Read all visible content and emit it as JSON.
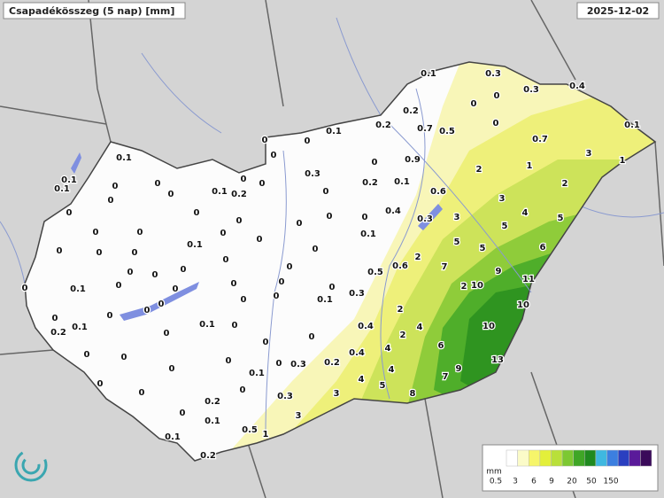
{
  "header": {
    "title": "Csapadékösszeg (5 nap) [mm]",
    "date": "2025-12-02"
  },
  "stations": [
    "0.1",
    "0.1",
    "0.1",
    "0",
    "0",
    "0",
    "0",
    "0",
    "0.1",
    "0.2",
    "0",
    "0",
    "0",
    "0",
    "0",
    "0",
    "0",
    "0.1",
    "0",
    "0",
    "0",
    "0",
    "0",
    "0.1",
    "0",
    "0",
    "0",
    "0",
    "0",
    "0",
    "0",
    "0",
    "0",
    "0.2",
    "0.1",
    "0",
    "0",
    "0.1",
    "0",
    "0",
    "0",
    "0",
    "0",
    "0",
    "0",
    "0.1",
    "0",
    "0",
    "0.2",
    "0",
    "0",
    "0.1",
    "0.1",
    "0.2",
    "0.5",
    "1",
    "0.3",
    "3",
    "3",
    "0",
    "0.3",
    "0.2",
    "0.4",
    "0",
    "4",
    "5",
    "4",
    "8",
    "7",
    "9",
    "6",
    "13",
    "10",
    "4",
    "2",
    "4",
    "2",
    "0.4",
    "0.3",
    "0.1",
    "0",
    "0",
    "0",
    "0",
    "0",
    "0.5",
    "0.6",
    "2",
    "7",
    "2",
    "10",
    "9",
    "10",
    "11",
    "6",
    "5",
    "5",
    "0.3",
    "3",
    "5",
    "4",
    "5",
    "3",
    "2",
    "3",
    "1",
    "1",
    "2",
    "0.7",
    "0.1",
    "0.4",
    "0.3",
    "0.3",
    "0.1",
    "0",
    "0",
    "0",
    "0.2",
    "0.7",
    "0.5",
    "0.2",
    "0.1",
    "0",
    "0",
    "0",
    "0.9",
    "0",
    "0.3",
    "0.1",
    "0.2",
    "0.6",
    "0",
    "0.4",
    "0",
    "0",
    "0",
    "0.1",
    "0"
  ],
  "legend": {
    "unit": "mm",
    "labels": [
      "0.5",
      "3",
      "6",
      "9",
      "20",
      "50",
      "150"
    ]
  }
}
